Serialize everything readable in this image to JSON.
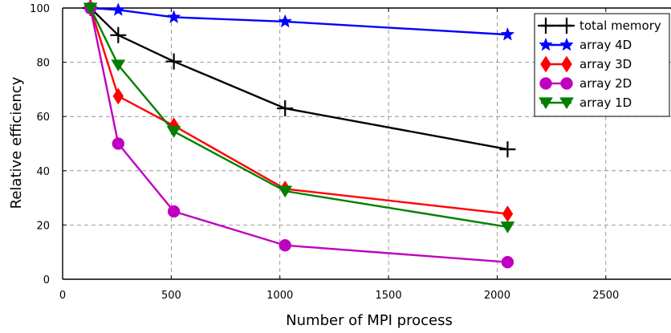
{
  "chart_data": {
    "type": "line",
    "title": "",
    "xlabel": "Number of MPI process",
    "ylabel": "Relative efficiency",
    "xlim": [
      0,
      2800
    ],
    "ylim": [
      0,
      100
    ],
    "x_ticks": [
      0,
      500,
      1000,
      1500,
      2000,
      2500
    ],
    "y_ticks": [
      0,
      20,
      40,
      60,
      80,
      100
    ],
    "grid": true,
    "legend_position": "top-right",
    "series": [
      {
        "name": "total memory",
        "color": "#000000",
        "marker": "plus",
        "x": [
          128,
          256,
          512,
          1024,
          2048
        ],
        "values": [
          100,
          90,
          80.3,
          63,
          47.9
        ]
      },
      {
        "name": "array 4D",
        "color": "#0000ff",
        "marker": "star",
        "x": [
          128,
          256,
          512,
          1024,
          2048
        ],
        "values": [
          100,
          99.3,
          96.6,
          95,
          90.2
        ]
      },
      {
        "name": "array 3D",
        "color": "#ff0000",
        "marker": "diamond",
        "x": [
          128,
          256,
          512,
          1024,
          2048
        ],
        "values": [
          100,
          67.5,
          56.6,
          33.3,
          24.1
        ]
      },
      {
        "name": "array 2D",
        "color": "#bf00bf",
        "marker": "circle",
        "x": [
          128,
          256,
          512,
          1024,
          2048
        ],
        "values": [
          100,
          50,
          25,
          12.5,
          6.3
        ]
      },
      {
        "name": "array 1D",
        "color": "#008000",
        "marker": "triangle-down",
        "x": [
          128,
          256,
          512,
          1024,
          2048
        ],
        "values": [
          100,
          79,
          54.5,
          32.5,
          19.3
        ]
      }
    ]
  }
}
